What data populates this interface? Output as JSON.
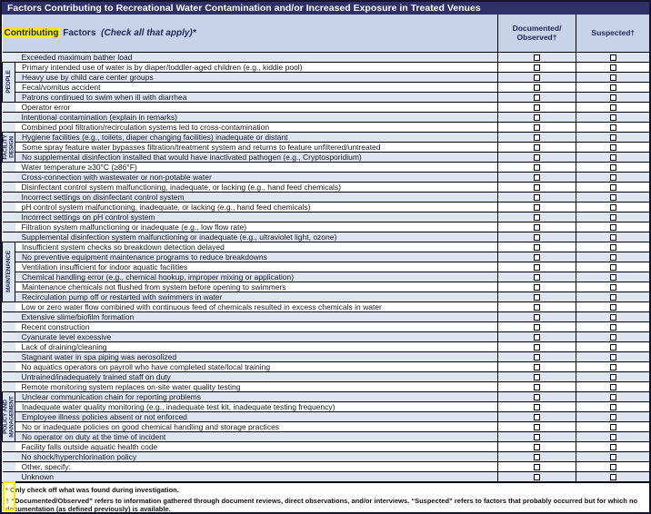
{
  "title": "Factors Contributing to Recreational Water Contamination and/or Increased Exposure in Treated Venues",
  "header": {
    "factors_highlight": "Contributing",
    "factors_rest": "Factors",
    "factors_instruction": "(Check all that apply)*",
    "col_documented": "Documented/\nObserved†",
    "col_suspected": "Suspected†"
  },
  "groups": [
    {
      "label": "PEOPLE",
      "start": 2,
      "end": 5
    },
    {
      "label": "FACILITY\nDESIGN",
      "start": 9,
      "end": 11
    },
    {
      "label": "MAINTENANCE",
      "start": 20,
      "end": 25
    },
    {
      "label": "POLICY AND\nMANAGEMENT",
      "start": 35,
      "end": 39
    }
  ],
  "checkbox_columns": [
    "documented",
    "suspected"
  ],
  "rows": [
    "Exceeded maximum bather load",
    "Primary intended use of water is by diaper/toddler-aged children (e.g., kiddie pool)",
    "Heavy use by child care center groups",
    "Fecal/vomitus accident",
    "Patrons continued to swim when ill with diarrhea",
    "Operator error",
    "Intentional contamination (explain in remarks)",
    "Combined pool filtration/recirculation systems led to cross-contamination",
    "Hygiene facilities (e.g., toilets, diaper changing facilities) inadequate or distant",
    "Some spray feature water bypasses filtration/treatment system and returns to feature unfiltered/untreated",
    "No supplemental disinfection installed that would have inactivated pathogen (e.g., Cryptosporidium)",
    "Water temperature ≥30°C (≥86°F)",
    "Cross-connection with wastewater or non-potable water",
    "Disinfectant control system malfunctioning, inadequate, or lacking (e.g., hand feed chemicals)",
    "Incorrect settings on disinfectant control system",
    "pH control system malfunctioning, inadequate, or lacking (e.g., hand feed chemicals)",
    "Incorrect settings on pH control system",
    "Filtration system malfunctioning or inadequate (e.g., low flow rate)",
    "Supplemental disinfection system malfunctioning or inadequate (e.g., ultraviolet light, ozone)",
    "Insufficient system checks so breakdown detection delayed",
    "No preventive equipment maintenance programs to reduce breakdowns",
    "Ventilation insufficient for indoor aquatic facilities",
    "Chemical handling error (e.g., chemical hookup, improper mixing or application)",
    "Maintenance chemicals not flushed from system before opening to swimmers",
    "Recirculation pump off or restarted with swimmers in water",
    "Low or zero water flow combined with continuous feed of chemicals resulted in excess chemicals in water",
    "Extensive slime/biofilm formation",
    "Recent construction",
    "Cyanurate level excessive",
    "Lack of draining/cleaning",
    "Stagnant water in spa piping was aerosolized",
    "No aquatics operators on payroll who have completed state/local training",
    "Untrained/inadequately trained staff on duty",
    "Remote monitoring system replaces on-site water quality testing",
    "Unclear communication chain for reporting problems",
    "Inadequate water quality monitoring (e.g., inadequate test kit, inadequate testing frequency)",
    "Employee illness policies absent or not enforced",
    "No or inadequate policies on good chemical handling and storage practices",
    "No operator on duty at the time of incident",
    "Facility falls outside aquatic health code",
    "No shock/hyperchlorination policy",
    "Other, specify:",
    "Unknown"
  ],
  "footnotes": {
    "line1": "* Only check off what was found during investigation.",
    "line2": "† “Documented/Observed” refers to information gathered through document reviews, direct observations, and/or interviews. “Suspected” refers to factors that probably occurred but for which no documentation (as defined previously) is available."
  },
  "colors": {
    "title_bar": "#2d3167",
    "header_bg": "#c7d3e8",
    "row_shaded": "#dee5f1",
    "highlight": "#ffee00",
    "annotation_yellow": "#ffe400",
    "border": "#000000"
  }
}
